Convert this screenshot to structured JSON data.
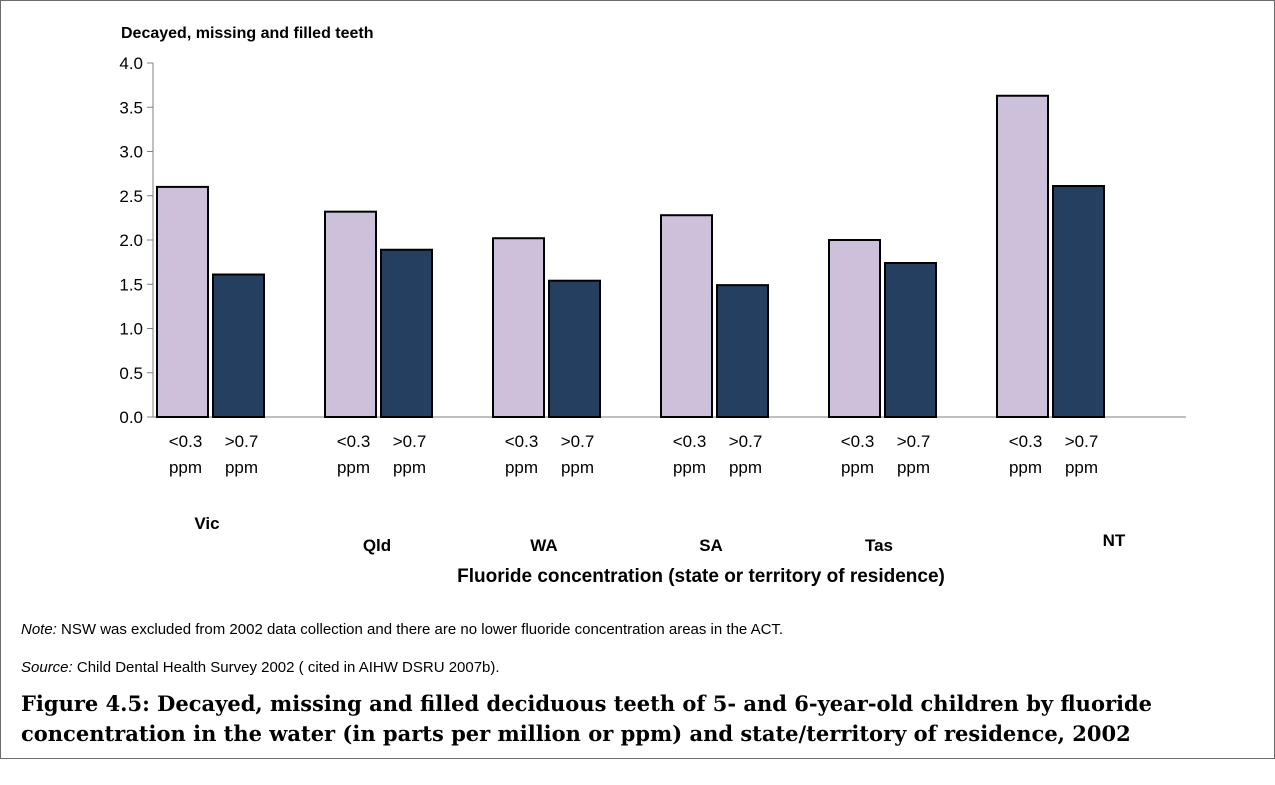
{
  "chart_data": {
    "type": "bar",
    "title": "Decayed, missing and filled teeth",
    "xlabel": "Fluoride concentration (state or territory of residence)",
    "ylabel": "",
    "ylim": [
      0,
      4.0
    ],
    "yticks": [
      "0.0",
      "0.5",
      "1.0",
      "1.5",
      "2.0",
      "2.5",
      "3.0",
      "3.5",
      "4.0"
    ],
    "groups": [
      "Vic",
      "Qld",
      "WA",
      "SA",
      "Tas",
      "NT"
    ],
    "bar_labels": [
      "<0.3",
      "ppm",
      ">0.7",
      "ppm"
    ],
    "series": [
      {
        "key": "low",
        "values": [
          2.6,
          2.32,
          2.02,
          2.28,
          2.0,
          3.63
        ],
        "color": "#ccc0da"
      },
      {
        "key": "high",
        "values": [
          1.61,
          1.89,
          1.54,
          1.49,
          1.74,
          2.61
        ],
        "color": "#243f60"
      }
    ],
    "grid": false,
    "legend": "none"
  },
  "note": {
    "label": "Note:",
    "text": " NSW was excluded from 2002 data collection and there are no lower fluoride concentration areas in the ACT."
  },
  "source": {
    "label": "Source:",
    "text": " Child Dental Health Survey 2002 ( cited in AIHW DSRU 2007b)."
  },
  "caption": "Figure 4.5: Decayed, missing and filled deciduous teeth of 5- and 6-year-old children by fluoride concentration in the water (in parts per million or ppm) and state/territory of residence, 2002"
}
